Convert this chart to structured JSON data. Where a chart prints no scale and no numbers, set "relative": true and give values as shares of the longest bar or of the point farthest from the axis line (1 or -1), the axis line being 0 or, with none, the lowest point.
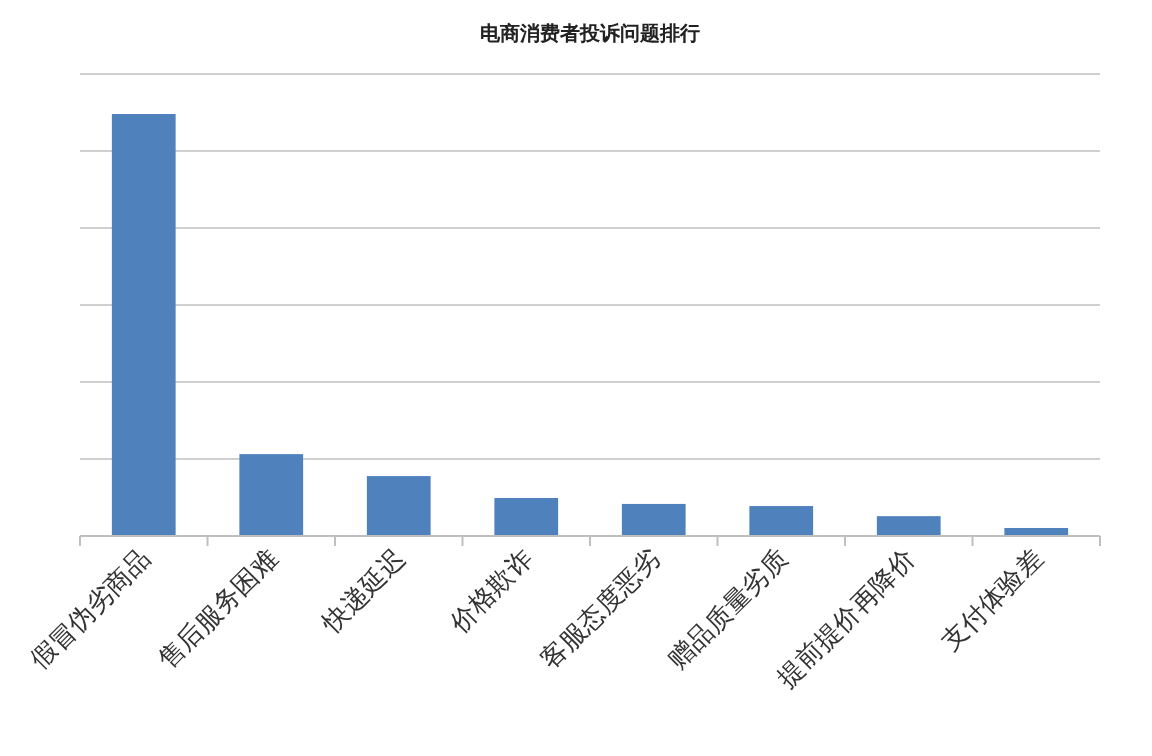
{
  "chart_data": {
    "type": "bar",
    "title": "电商消费者投诉问题排行",
    "categories": [
      "假冒伪劣商品",
      "售后服务困难",
      "快递延迟",
      "价格欺诈",
      "客服态度恶劣",
      "赠品质量劣质",
      "提前提价再降价",
      "支付体验差"
    ],
    "values": [
      1,
      0.194,
      0.142,
      0.09,
      0.076,
      0.071,
      0.047,
      0.019
    ],
    "color": "#4f81bd",
    "relative": true,
    "grid": "y"
  }
}
